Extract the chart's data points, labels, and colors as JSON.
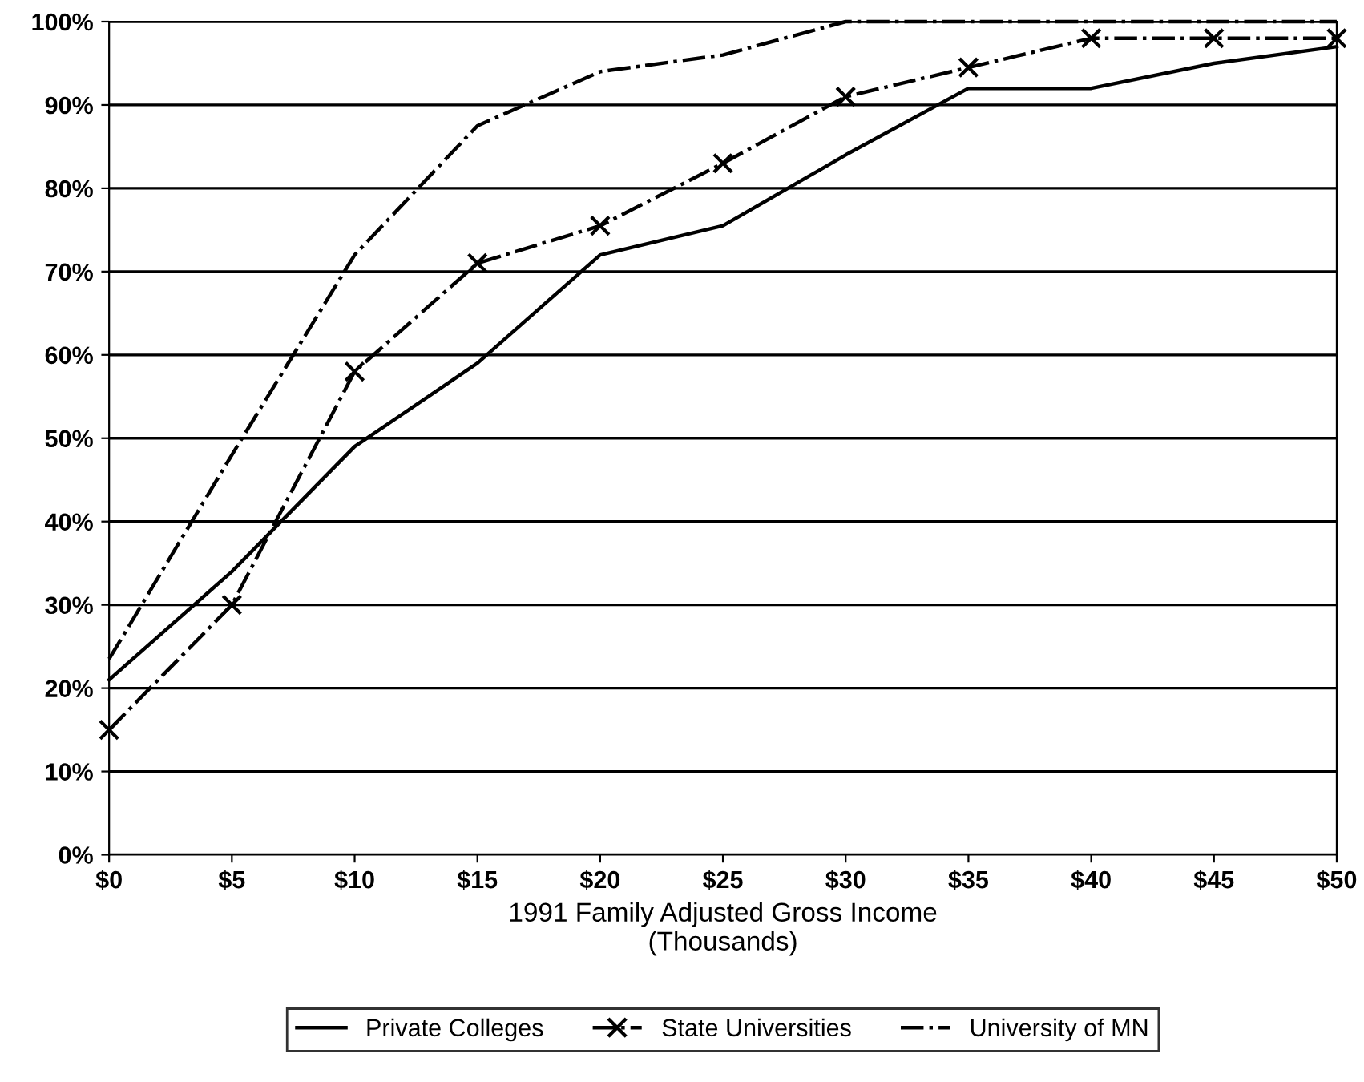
{
  "chart_data": {
    "type": "line",
    "xlabel": "1991 Family Adjusted Gross Income\n(Thousands)",
    "x": [
      0,
      5,
      10,
      15,
      20,
      25,
      30,
      35,
      40,
      45,
      50
    ],
    "series": [
      {
        "name": "Private Colleges",
        "color": "#000000",
        "line_style": "solid",
        "marker": "none",
        "values": [
          21,
          34,
          49,
          59,
          72,
          75.5,
          84,
          92,
          92,
          95,
          97
        ]
      },
      {
        "name": "State Universities",
        "color": "#000000",
        "line_style": "dashdot",
        "marker": "cross",
        "values": [
          15,
          30,
          58,
          71,
          75.5,
          83,
          91,
          94.5,
          98,
          98,
          98
        ]
      },
      {
        "name": "University of MN",
        "color": "#000000",
        "line_style": "dashdot",
        "marker": "none",
        "values": [
          23.5,
          48,
          72,
          87.5,
          94,
          96,
          100,
          100,
          100,
          100,
          100
        ]
      }
    ],
    "xlim": [
      0,
      50
    ],
    "xticks": [
      {
        "value": 0,
        "label": "$0"
      },
      {
        "value": 5,
        "label": "$5"
      },
      {
        "value": 10,
        "label": "$10"
      },
      {
        "value": 15,
        "label": "$15"
      },
      {
        "value": 20,
        "label": "$20"
      },
      {
        "value": 25,
        "label": "$25"
      },
      {
        "value": 30,
        "label": "$30"
      },
      {
        "value": 35,
        "label": "$35"
      },
      {
        "value": 40,
        "label": "$40"
      },
      {
        "value": 45,
        "label": "$45"
      },
      {
        "value": 50,
        "label": "$50"
      }
    ],
    "ylim": [
      0,
      100
    ],
    "yticks": [
      {
        "value": 0,
        "label": "0%"
      },
      {
        "value": 10,
        "label": "10%"
      },
      {
        "value": 20,
        "label": "20%"
      },
      {
        "value": 30,
        "label": "30%"
      },
      {
        "value": 40,
        "label": "40%"
      },
      {
        "value": 50,
        "label": "50%"
      },
      {
        "value": 60,
        "label": "60%"
      },
      {
        "value": 70,
        "label": "70%"
      },
      {
        "value": 80,
        "label": "80%"
      },
      {
        "value": 90,
        "label": "90%"
      },
      {
        "value": 100,
        "label": "100%"
      }
    ],
    "grid": "y",
    "legend": "bottom"
  }
}
